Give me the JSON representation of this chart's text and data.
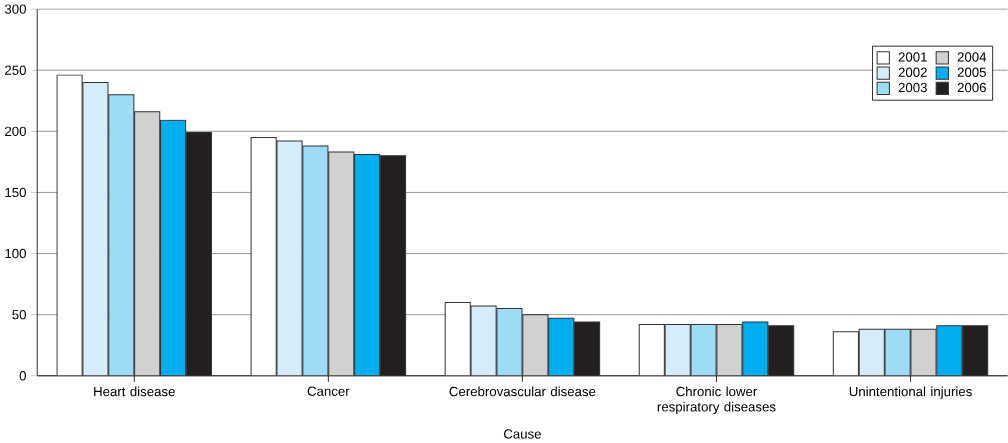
{
  "chart_data": {
    "type": "bar",
    "xlabel": "Cause",
    "categories": [
      "Heart disease",
      "Cancer",
      "Cerebrovascular disease",
      "Chronic lower respiratory diseases",
      "Unintentional injuries"
    ],
    "series": [
      {
        "name": "2001",
        "color": "#ffffff",
        "values": [
          246,
          195,
          60,
          42,
          36
        ]
      },
      {
        "name": "2002",
        "color": "#d6ecfa",
        "values": [
          240,
          192,
          57,
          42,
          38
        ]
      },
      {
        "name": "2003",
        "color": "#9ddbf7",
        "values": [
          230,
          188,
          55,
          42,
          38
        ]
      },
      {
        "name": "2004",
        "color": "#d0d1d3",
        "values": [
          216,
          183,
          50,
          42,
          38
        ]
      },
      {
        "name": "2005",
        "color": "#00aeef",
        "values": [
          209,
          181,
          47,
          44,
          41
        ]
      },
      {
        "name": "2006",
        "color": "#231f20",
        "values": [
          199,
          180,
          44,
          41,
          41
        ]
      }
    ],
    "ylim": [
      0,
      300
    ],
    "yticks": [
      0,
      50,
      100,
      150,
      200,
      250,
      300
    ],
    "grid": "y",
    "legend": "top right"
  }
}
